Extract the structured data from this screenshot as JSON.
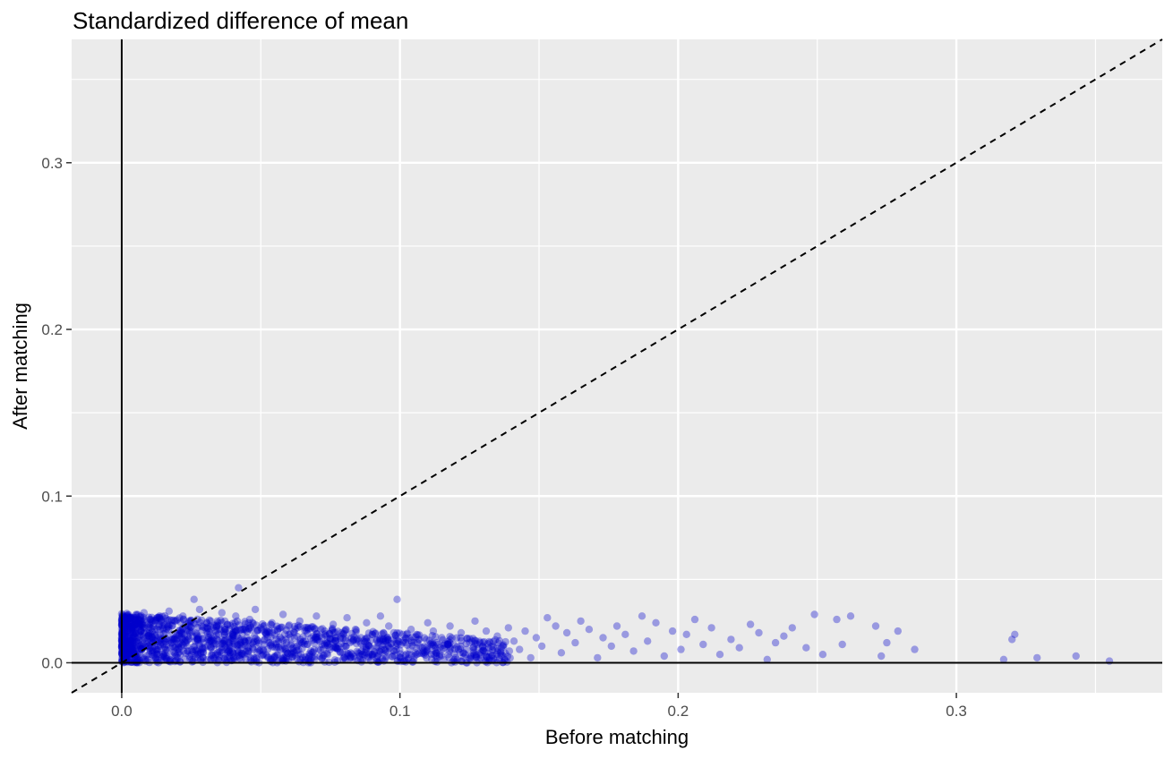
{
  "chart_data": {
    "type": "scatter",
    "title": "Standardized difference of mean",
    "xlabel": "Before matching",
    "ylabel": "After matching",
    "xlim": [
      -0.018,
      0.374
    ],
    "ylim": [
      -0.018,
      0.374
    ],
    "x_ticks": [
      0.0,
      0.1,
      0.2,
      0.3
    ],
    "x_tick_labels": [
      "0.0",
      "0.1",
      "0.2",
      "0.3"
    ],
    "y_ticks": [
      0.0,
      0.1,
      0.2,
      0.3
    ],
    "y_tick_labels": [
      "0.0",
      "0.1",
      "0.2",
      "0.3"
    ],
    "grid": true,
    "reference_lines": {
      "x_axis_line": 0,
      "y_axis_line": 0,
      "diagonal_dashed": "y = x"
    },
    "point_color": "#0000cc",
    "panel_background": "#ebebeb",
    "points": [
      [
        0.355,
        0.001
      ],
      [
        0.343,
        0.004
      ],
      [
        0.329,
        0.003
      ],
      [
        0.321,
        0.017
      ],
      [
        0.32,
        0.014
      ],
      [
        0.317,
        0.002
      ],
      [
        0.285,
        0.008
      ],
      [
        0.279,
        0.019
      ],
      [
        0.275,
        0.012
      ],
      [
        0.273,
        0.004
      ],
      [
        0.271,
        0.022
      ],
      [
        0.262,
        0.028
      ],
      [
        0.259,
        0.011
      ],
      [
        0.257,
        0.026
      ],
      [
        0.252,
        0.005
      ],
      [
        0.249,
        0.029
      ],
      [
        0.246,
        0.009
      ],
      [
        0.241,
        0.021
      ],
      [
        0.238,
        0.016
      ],
      [
        0.235,
        0.012
      ],
      [
        0.232,
        0.002
      ],
      [
        0.229,
        0.018
      ],
      [
        0.226,
        0.023
      ],
      [
        0.222,
        0.009
      ],
      [
        0.219,
        0.014
      ],
      [
        0.215,
        0.005
      ],
      [
        0.212,
        0.021
      ],
      [
        0.209,
        0.011
      ],
      [
        0.206,
        0.026
      ],
      [
        0.203,
        0.017
      ],
      [
        0.201,
        0.008
      ],
      [
        0.198,
        0.019
      ],
      [
        0.195,
        0.004
      ],
      [
        0.192,
        0.024
      ],
      [
        0.189,
        0.013
      ],
      [
        0.187,
        0.028
      ],
      [
        0.184,
        0.007
      ],
      [
        0.181,
        0.017
      ],
      [
        0.178,
        0.022
      ],
      [
        0.176,
        0.01
      ],
      [
        0.173,
        0.015
      ],
      [
        0.171,
        0.003
      ],
      [
        0.168,
        0.02
      ],
      [
        0.165,
        0.025
      ],
      [
        0.163,
        0.012
      ],
      [
        0.16,
        0.018
      ],
      [
        0.158,
        0.006
      ],
      [
        0.156,
        0.022
      ],
      [
        0.153,
        0.027
      ],
      [
        0.151,
        0.01
      ],
      [
        0.149,
        0.015
      ],
      [
        0.147,
        0.003
      ],
      [
        0.145,
        0.019
      ],
      [
        0.143,
        0.008
      ],
      [
        0.141,
        0.013
      ],
      [
        0.139,
        0.021
      ],
      [
        0.137,
        0.004
      ],
      [
        0.135,
        0.016
      ],
      [
        0.133,
        0.01
      ],
      [
        0.131,
        0.019
      ],
      [
        0.129,
        0.006
      ],
      [
        0.127,
        0.025
      ],
      [
        0.126,
        0.013
      ],
      [
        0.124,
        0.008
      ],
      [
        0.122,
        0.018
      ],
      [
        0.12,
        0.003
      ],
      [
        0.118,
        0.022
      ],
      [
        0.117,
        0.011
      ],
      [
        0.115,
        0.015
      ],
      [
        0.113,
        0.006
      ],
      [
        0.112,
        0.019
      ],
      [
        0.11,
        0.024
      ],
      [
        0.108,
        0.009
      ],
      [
        0.107,
        0.014
      ],
      [
        0.105,
        0.002
      ],
      [
        0.104,
        0.02
      ],
      [
        0.102,
        0.012
      ],
      [
        0.101,
        0.017
      ],
      [
        0.099,
        0.038
      ],
      [
        0.098,
        0.007
      ],
      [
        0.096,
        0.022
      ],
      [
        0.095,
        0.013
      ],
      [
        0.093,
        0.028
      ],
      [
        0.092,
        0.004
      ],
      [
        0.09,
        0.017
      ],
      [
        0.089,
        0.01
      ],
      [
        0.088,
        0.024
      ],
      [
        0.086,
        0.015
      ],
      [
        0.085,
        0.006
      ],
      [
        0.084,
        0.02
      ],
      [
        0.082,
        0.012
      ],
      [
        0.081,
        0.027
      ],
      [
        0.08,
        0.003
      ],
      [
        0.079,
        0.018
      ],
      [
        0.077,
        0.009
      ],
      [
        0.076,
        0.023
      ],
      [
        0.075,
        0.014
      ],
      [
        0.074,
        0.005
      ],
      [
        0.073,
        0.019
      ],
      [
        0.072,
        0.011
      ],
      [
        0.07,
        0.028
      ],
      [
        0.069,
        0.016
      ],
      [
        0.068,
        0.007
      ],
      [
        0.067,
        0.021
      ],
      [
        0.066,
        0.013
      ],
      [
        0.065,
        0.003
      ],
      [
        0.064,
        0.025
      ],
      [
        0.063,
        0.01
      ],
      [
        0.062,
        0.018
      ],
      [
        0.061,
        0.006
      ],
      [
        0.06,
        0.022
      ],
      [
        0.059,
        0.014
      ],
      [
        0.058,
        0.029
      ],
      [
        0.057,
        0.008
      ],
      [
        0.056,
        0.019
      ],
      [
        0.055,
        0.004
      ],
      [
        0.054,
        0.024
      ],
      [
        0.053,
        0.012
      ],
      [
        0.052,
        0.017
      ],
      [
        0.051,
        0.007
      ],
      [
        0.05,
        0.021
      ],
      [
        0.049,
        0.013
      ],
      [
        0.048,
        0.032
      ],
      [
        0.047,
        0.009
      ],
      [
        0.046,
        0.026
      ],
      [
        0.045,
        0.015
      ],
      [
        0.044,
        0.005
      ],
      [
        0.043,
        0.02
      ],
      [
        0.042,
        0.045
      ],
      [
        0.042,
        0.011
      ],
      [
        0.041,
        0.028
      ],
      [
        0.04,
        0.017
      ],
      [
        0.039,
        0.006
      ],
      [
        0.038,
        0.023
      ],
      [
        0.037,
        0.013
      ],
      [
        0.036,
        0.03
      ],
      [
        0.035,
        0.008
      ],
      [
        0.034,
        0.019
      ],
      [
        0.033,
        0.003
      ],
      [
        0.032,
        0.025
      ],
      [
        0.031,
        0.014
      ],
      [
        0.03,
        0.021
      ],
      [
        0.029,
        0.009
      ],
      [
        0.028,
        0.032
      ],
      [
        0.027,
        0.017
      ],
      [
        0.026,
        0.038
      ],
      [
        0.025,
        0.005
      ],
      [
        0.024,
        0.022
      ],
      [
        0.023,
        0.012
      ],
      [
        0.022,
        0.028
      ],
      [
        0.021,
        0.018
      ],
      [
        0.02,
        0.008
      ],
      [
        0.019,
        0.025
      ],
      [
        0.018,
        0.014
      ],
      [
        0.017,
        0.031
      ],
      [
        0.016,
        0.004
      ],
      [
        0.015,
        0.02
      ],
      [
        0.014,
        0.011
      ],
      [
        0.013,
        0.027
      ],
      [
        0.012,
        0.016
      ],
      [
        0.011,
        0.007
      ],
      [
        0.01,
        0.023
      ],
      [
        0.009,
        0.013
      ],
      [
        0.008,
        0.03
      ],
      [
        0.007,
        0.019
      ],
      [
        0.006,
        0.002
      ],
      [
        0.005,
        0.025
      ],
      [
        0.004,
        0.012
      ],
      [
        0.003,
        0.021
      ],
      [
        0.002,
        0.008
      ],
      [
        0.001,
        0.016
      ],
      [
        0.001,
        0.027
      ],
      [
        0.002,
        0.003
      ],
      [
        0.004,
        0.018
      ],
      [
        0.006,
        0.01
      ]
    ]
  }
}
